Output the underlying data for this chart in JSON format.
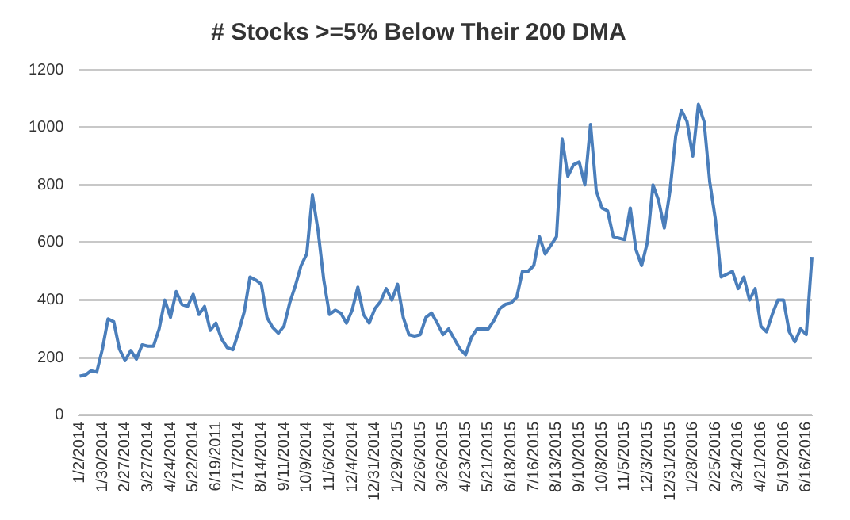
{
  "chart_data": {
    "type": "line",
    "title": "# Stocks >=5% Below Their 200 DMA",
    "categories": [
      "1/2/2014",
      null,
      null,
      null,
      "1/30/2014",
      null,
      null,
      null,
      "2/27/2014",
      null,
      null,
      null,
      "3/27/2014",
      null,
      null,
      null,
      "4/24/2014",
      null,
      null,
      null,
      "5/22/2014",
      null,
      null,
      null,
      "6/19/2011",
      null,
      null,
      null,
      "7/17/2014",
      null,
      null,
      null,
      "8/14/2014",
      null,
      null,
      null,
      "9/11/2014",
      null,
      null,
      null,
      "10/9/2014",
      null,
      null,
      null,
      "11/6/2014",
      null,
      null,
      null,
      "12/4/2014",
      null,
      null,
      null,
      "12/31/2014",
      null,
      null,
      null,
      "1/29/2015",
      null,
      null,
      null,
      "2/26/2015",
      null,
      null,
      null,
      "3/26/2015",
      null,
      null,
      null,
      "4/23/2015",
      null,
      null,
      null,
      "5/21/2015",
      null,
      null,
      null,
      "6/18/2015",
      null,
      null,
      null,
      "7/16/2015",
      null,
      null,
      null,
      "8/13/2015",
      null,
      null,
      null,
      "9/10/2015",
      null,
      null,
      null,
      "10/8/2015",
      null,
      null,
      null,
      "11/5/2015",
      null,
      null,
      null,
      "12/3/2015",
      null,
      null,
      null,
      "12/31/2015",
      null,
      null,
      null,
      "1/28/2016",
      null,
      null,
      null,
      "2/25/2016",
      null,
      null,
      null,
      "3/24/2016",
      null,
      null,
      null,
      "4/21/2016",
      null,
      null,
      null,
      "5/19/2016",
      null,
      null,
      null,
      "6/16/2016",
      null
    ],
    "series": [
      {
        "color": "#4a7ebb",
        "values": [
          136,
          140,
          155,
          150,
          230,
          335,
          325,
          230,
          190,
          225,
          195,
          245,
          240,
          240,
          300,
          400,
          340,
          430,
          385,
          378,
          420,
          350,
          378,
          295,
          320,
          265,
          235,
          228,
          290,
          360,
          480,
          470,
          455,
          340,
          305,
          285,
          310,
          390,
          450,
          520,
          560,
          765,
          640,
          470,
          350,
          365,
          355,
          320,
          365,
          445,
          350,
          320,
          370,
          395,
          440,
          400,
          455,
          340,
          280,
          275,
          280,
          340,
          355,
          320,
          280,
          300,
          265,
          230,
          210,
          270,
          300,
          300,
          300,
          330,
          370,
          385,
          390,
          410,
          500,
          500,
          520,
          620,
          560,
          590,
          620,
          960,
          830,
          870,
          880,
          800,
          1010,
          780,
          720,
          710,
          620,
          615,
          610,
          720,
          575,
          520,
          600,
          800,
          745,
          650,
          780,
          970,
          1060,
          1020,
          900,
          1080,
          1020,
          810,
          680,
          480,
          490,
          500,
          440,
          480,
          400,
          440,
          310,
          290,
          350,
          400,
          400,
          290,
          255,
          300,
          280,
          550
        ]
      }
    ],
    "ylim": [
      0,
      1200
    ],
    "yticks": [
      0,
      200,
      400,
      600,
      800,
      1000,
      1200
    ],
    "grid": "y",
    "legend": false,
    "marker": "none",
    "line_style": "solid"
  }
}
